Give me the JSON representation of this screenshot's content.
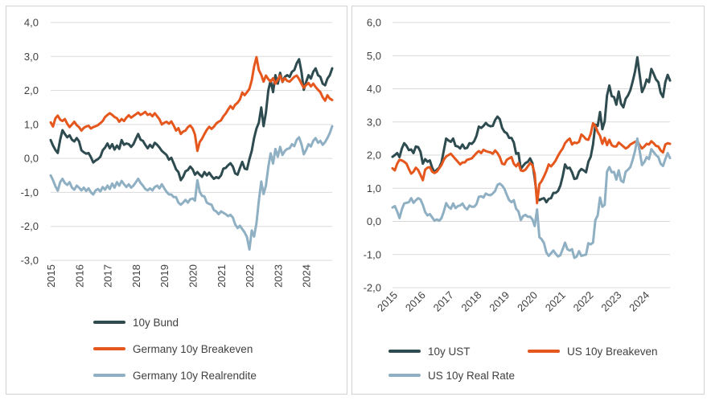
{
  "page": {
    "background": "#ffffff",
    "text_color": "#404040",
    "grid_color": "#d9d9d9",
    "panel_border_color": "#d2d2d2"
  },
  "chart_data": [
    {
      "type": "line",
      "title": "",
      "xlabel": "",
      "ylabel": "",
      "grid": "horizontal",
      "legend_position": "bottom-left, stacked",
      "x_frequency": "monthly",
      "x_range": [
        "2015",
        "2024"
      ],
      "x_ticks": [
        "2015",
        "2016",
        "2017",
        "2018",
        "2019",
        "2020",
        "2021",
        "2022",
        "2023",
        "2024"
      ],
      "x_tick_rotation": -90,
      "ylim": [
        -3.0,
        4.0
      ],
      "y_ticks": [
        "4,0",
        "3,0",
        "2,0",
        "1,0",
        "0,0",
        "-1,0",
        "-2,0",
        "-3,0"
      ],
      "y_tick_values": [
        4,
        3,
        2,
        1,
        0,
        -1,
        -2,
        -3
      ],
      "series": [
        {
          "name": "10y Bund",
          "color": "#2e4b50",
          "values": [
            0.54,
            0.38,
            0.25,
            0.16,
            0.55,
            0.83,
            0.72,
            0.62,
            0.68,
            0.55,
            0.5,
            0.6,
            0.5,
            0.24,
            0.18,
            0.14,
            0.16,
            0.04,
            -0.12,
            -0.06,
            -0.02,
            0.05,
            0.24,
            0.32,
            0.44,
            0.3,
            0.42,
            0.26,
            0.38,
            0.28,
            0.54,
            0.4,
            0.44,
            0.42,
            0.34,
            0.42,
            0.58,
            0.72,
            0.55,
            0.52,
            0.4,
            0.3,
            0.4,
            0.32,
            0.46,
            0.4,
            0.32,
            0.22,
            0.16,
            0.1,
            -0.04,
            0.02,
            -0.14,
            -0.32,
            -0.4,
            -0.64,
            -0.54,
            -0.38,
            -0.34,
            -0.24,
            -0.32,
            -0.48,
            -0.4,
            -0.48,
            -0.54,
            -0.4,
            -0.5,
            -0.42,
            -0.52,
            -0.6,
            -0.55,
            -0.58,
            -0.5,
            -0.3,
            -0.28,
            -0.2,
            -0.14,
            -0.24,
            -0.44,
            -0.48,
            -0.28,
            -0.1,
            -0.3,
            -0.32,
            -0.02,
            0.22,
            0.6,
            0.88,
            1.05,
            1.5,
            0.95,
            1.35,
            2.0,
            2.3,
            1.95,
            2.45,
            2.2,
            2.52,
            2.25,
            2.4,
            2.45,
            2.4,
            2.55,
            2.6,
            2.8,
            2.92,
            2.55,
            2.02,
            2.25,
            2.45,
            2.35,
            2.55,
            2.65,
            2.45,
            2.4,
            2.2,
            2.15,
            2.35,
            2.45,
            2.65
          ]
        },
        {
          "name": "Germany 10y Breakeven",
          "color": "#e5571d",
          "values": [
            1.06,
            0.94,
            1.18,
            1.26,
            1.14,
            1.1,
            1.16,
            1.02,
            0.92,
            1.0,
            1.08,
            0.98,
            0.92,
            0.82,
            0.9,
            0.94,
            0.96,
            0.88,
            0.92,
            0.95,
            0.98,
            1.04,
            1.1,
            1.22,
            1.28,
            1.33,
            1.28,
            1.22,
            1.18,
            1.08,
            1.16,
            1.1,
            1.2,
            1.27,
            1.2,
            1.25,
            1.3,
            1.35,
            1.28,
            1.32,
            1.37,
            1.28,
            1.31,
            1.24,
            1.33,
            1.24,
            1.15,
            1.0,
            1.05,
            1.08,
            1.02,
            1.09,
            0.97,
            0.82,
            0.89,
            0.72,
            0.79,
            0.82,
            0.92,
            0.97,
            0.88,
            0.7,
            0.22,
            0.48,
            0.58,
            0.72,
            0.84,
            0.93,
            0.87,
            0.93,
            1.03,
            1.08,
            1.12,
            1.24,
            1.32,
            1.44,
            1.54,
            1.46,
            1.58,
            1.64,
            1.74,
            1.94,
            1.86,
            1.95,
            2.05,
            2.3,
            2.7,
            2.98,
            2.6,
            2.46,
            2.26,
            2.44,
            2.33,
            2.26,
            2.36,
            2.2,
            2.32,
            2.44,
            2.26,
            2.36,
            2.28,
            2.26,
            2.33,
            2.4,
            2.44,
            2.34,
            2.2,
            2.08,
            2.16,
            2.22,
            2.12,
            2.2,
            2.1,
            2.02,
            1.95,
            1.8,
            1.7,
            1.86,
            1.76,
            1.72
          ]
        },
        {
          "name": "Germany 10y Realrendite",
          "color": "#8fafc3",
          "values": [
            -0.5,
            -0.64,
            -0.82,
            -0.95,
            -0.7,
            -0.6,
            -0.72,
            -0.78,
            -0.7,
            -0.86,
            -0.92,
            -0.8,
            -0.86,
            -0.94,
            -0.86,
            -0.96,
            -0.88,
            -1.0,
            -1.06,
            -0.94,
            -0.9,
            -0.97,
            -0.84,
            -0.92,
            -0.8,
            -0.9,
            -0.74,
            -0.86,
            -0.7,
            -0.8,
            -0.66,
            -0.76,
            -0.84,
            -0.76,
            -0.86,
            -0.8,
            -0.7,
            -0.6,
            -0.72,
            -0.8,
            -0.9,
            -0.94,
            -0.88,
            -0.94,
            -0.84,
            -0.8,
            -0.88,
            -0.76,
            -0.88,
            -0.98,
            -1.06,
            -1.06,
            -1.14,
            -1.14,
            -1.3,
            -1.36,
            -1.3,
            -1.22,
            -1.3,
            -1.2,
            -1.18,
            -1.24,
            -0.64,
            -0.98,
            -1.1,
            -1.12,
            -1.3,
            -1.34,
            -1.36,
            -1.52,
            -1.56,
            -1.64,
            -1.56,
            -1.6,
            -1.64,
            -1.7,
            -1.66,
            -1.74,
            -1.94,
            -2.05,
            -1.98,
            -2.08,
            -2.18,
            -2.32,
            -2.68,
            -2.12,
            -2.3,
            -1.9,
            -1.25,
            -0.68,
            -1.05,
            -0.8,
            -0.25,
            0.15,
            -0.15,
            0.28,
            0.05,
            0.34,
            0.1,
            0.22,
            0.28,
            0.3,
            0.42,
            0.36,
            0.55,
            0.62,
            0.42,
            0.12,
            0.25,
            0.42,
            0.35,
            0.52,
            0.6,
            0.46,
            0.52,
            0.4,
            0.48,
            0.6,
            0.75,
            0.95
          ]
        }
      ]
    },
    {
      "type": "line",
      "title": "",
      "xlabel": "",
      "ylabel": "",
      "grid": "horizontal",
      "legend_position": "bottom, two columns",
      "x_frequency": "monthly",
      "x_range": [
        "2015",
        "2024"
      ],
      "x_ticks": [
        "2015",
        "2016",
        "2017",
        "2018",
        "2019",
        "2020",
        "2021",
        "2022",
        "2023",
        "2024"
      ],
      "x_tick_rotation": -45,
      "ylim": [
        -2.0,
        6.0
      ],
      "y_ticks": [
        "6,0",
        "5,0",
        "4,0",
        "3,0",
        "2,0",
        "1,0",
        "0,0",
        "-1,0",
        "-2,0"
      ],
      "y_tick_values": [
        6,
        5,
        4,
        3,
        2,
        1,
        0,
        -1,
        -2
      ],
      "series": [
        {
          "name": "10y UST",
          "color": "#2e4b50",
          "values": [
            1.95,
            2.0,
            2.06,
            1.94,
            2.2,
            2.36,
            2.28,
            2.15,
            2.17,
            2.06,
            2.26,
            2.24,
            2.1,
            1.74,
            1.88,
            1.8,
            1.84,
            1.62,
            1.48,
            1.56,
            1.62,
            1.78,
            2.14,
            2.5,
            2.44,
            2.4,
            2.5,
            2.28,
            2.26,
            2.2,
            2.32,
            2.2,
            2.22,
            2.36,
            2.34,
            2.42,
            2.58,
            2.86,
            2.82,
            2.88,
            2.97,
            2.9,
            2.87,
            2.88,
            3.06,
            3.16,
            3.08,
            2.82,
            2.7,
            2.66,
            2.52,
            2.52,
            2.38,
            2.04,
            2.06,
            1.58,
            1.68,
            1.76,
            1.8,
            1.9,
            1.76,
            1.3,
            0.72,
            0.64,
            0.68,
            0.7,
            0.58,
            0.68,
            0.7,
            0.86,
            0.86,
            0.92,
            1.08,
            1.36,
            1.72,
            1.6,
            1.62,
            1.48,
            1.28,
            1.3,
            1.5,
            1.58,
            1.54,
            1.48,
            1.8,
            1.95,
            2.32,
            2.92,
            2.88,
            3.3,
            2.78,
            3.02,
            3.8,
            4.1,
            3.78,
            3.75,
            3.52,
            3.92,
            3.55,
            3.44,
            3.7,
            3.8,
            3.96,
            4.22,
            4.52,
            4.95,
            4.42,
            3.9,
            4.05,
            4.28,
            4.2,
            4.6,
            4.45,
            4.28,
            4.2,
            3.88,
            3.75,
            4.2,
            4.42,
            4.25
          ]
        },
        {
          "name": "US 10y Breakeven",
          "color": "#e5571d",
          "values": [
            1.6,
            1.54,
            1.74,
            1.86,
            1.84,
            1.8,
            1.74,
            1.58,
            1.44,
            1.5,
            1.62,
            1.55,
            1.4,
            1.24,
            1.56,
            1.62,
            1.64,
            1.5,
            1.46,
            1.5,
            1.6,
            1.7,
            1.86,
            1.96,
            2.0,
            2.04,
            1.96,
            1.88,
            1.8,
            1.72,
            1.78,
            1.78,
            1.86,
            1.88,
            1.9,
            1.98,
            2.06,
            2.12,
            2.06,
            2.16,
            2.12,
            2.1,
            2.08,
            2.04,
            2.14,
            2.06,
            1.94,
            1.74,
            1.72,
            1.86,
            1.9,
            1.94,
            1.74,
            1.66,
            1.76,
            1.54,
            1.52,
            1.56,
            1.66,
            1.76,
            1.7,
            1.44,
            0.55,
            1.12,
            1.22,
            1.36,
            1.52,
            1.72,
            1.66,
            1.74,
            1.84,
            1.98,
            2.1,
            2.2,
            2.36,
            2.44,
            2.5,
            2.32,
            2.38,
            2.36,
            2.4,
            2.62,
            2.56,
            2.48,
            2.46,
            2.64,
            2.96,
            2.88,
            2.7,
            2.58,
            2.34,
            2.52,
            2.3,
            2.46,
            2.3,
            2.26,
            2.26,
            2.38,
            2.32,
            2.26,
            2.2,
            2.24,
            2.32,
            2.36,
            2.4,
            2.42,
            2.3,
            2.2,
            2.26,
            2.34,
            2.32,
            2.42,
            2.36,
            2.28,
            2.26,
            2.14,
            2.08,
            2.32,
            2.36,
            2.34
          ]
        },
        {
          "name": "US 10y Real Rate",
          "color": "#8fafc3",
          "values": [
            0.42,
            0.46,
            0.3,
            0.1,
            0.36,
            0.54,
            0.56,
            0.58,
            0.7,
            0.56,
            0.64,
            0.7,
            0.66,
            0.5,
            0.28,
            0.18,
            0.22,
            0.12,
            0.02,
            0.06,
            0.02,
            0.1,
            0.3,
            0.55,
            0.44,
            0.38,
            0.54,
            0.4,
            0.46,
            0.48,
            0.54,
            0.42,
            0.36,
            0.48,
            0.44,
            0.44,
            0.52,
            0.74,
            0.76,
            0.72,
            0.84,
            0.8,
            0.79,
            0.84,
            0.92,
            1.1,
            1.14,
            1.08,
            0.98,
            0.8,
            0.64,
            0.58,
            0.64,
            0.38,
            0.3,
            0.04,
            0.16,
            0.2,
            0.14,
            0.14,
            0.06,
            -0.14,
            0.36,
            -0.48,
            -0.54,
            -0.66,
            -0.94,
            -1.04,
            -0.96,
            -0.88,
            -0.98,
            -1.06,
            -1.02,
            -0.84,
            -0.64,
            -0.84,
            -0.88,
            -0.84,
            -1.1,
            -1.06,
            -0.9,
            -1.04,
            -1.02,
            -1.0,
            -0.66,
            -0.69,
            -0.64,
            0.04,
            0.18,
            0.72,
            0.44,
            0.5,
            1.5,
            1.64,
            1.48,
            1.49,
            1.26,
            1.54,
            1.23,
            1.18,
            1.5,
            1.56,
            1.64,
            1.86,
            2.12,
            2.5,
            2.12,
            1.7,
            1.79,
            1.94,
            1.88,
            2.18,
            2.09,
            2.0,
            1.94,
            1.74,
            1.67,
            1.88,
            2.06,
            1.91
          ]
        }
      ]
    }
  ]
}
